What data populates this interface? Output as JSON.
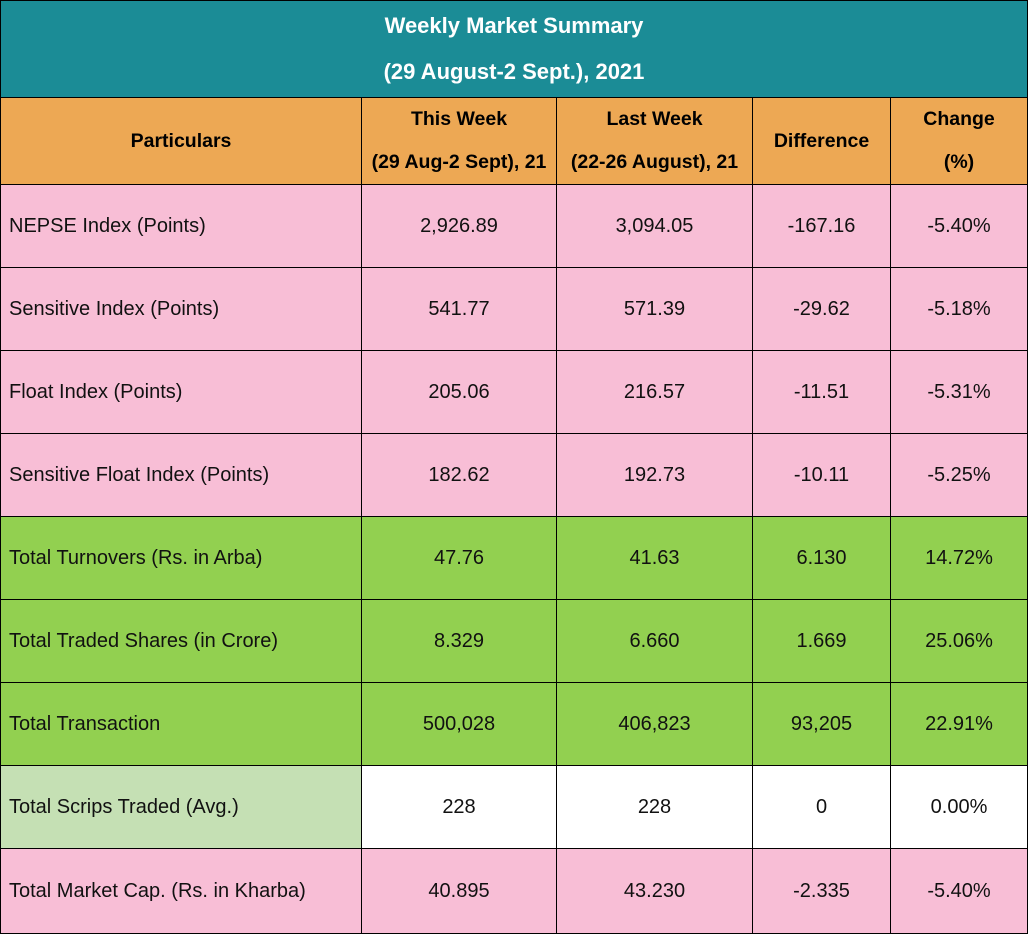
{
  "title": {
    "line1": "Weekly Market Summary",
    "line2": "(29 August-2 Sept.), 2021"
  },
  "header": {
    "particulars": "Particulars",
    "this_week": {
      "line1": "This Week",
      "line2": "(29 Aug-2 Sept), 21"
    },
    "last_week": {
      "line1": "Last Week",
      "line2": "(22-26 August), 21"
    },
    "difference": "Difference",
    "change": {
      "line1": "Change",
      "line2": "(%)"
    }
  },
  "colors": {
    "title_bg": "#1b8c96",
    "header_bg": "#eda854",
    "pink_row": "#f8bed6",
    "green_row": "#92d050",
    "light_green_label": "#c5e0b4"
  },
  "rows": [
    {
      "label": "NEPSE Index (Points)",
      "this_week": "2,926.89",
      "last_week": "3,094.05",
      "difference": "-167.16",
      "change": "-5.40%",
      "theme": "pink"
    },
    {
      "label": "Sensitive Index (Points)",
      "this_week": "541.77",
      "last_week": "571.39",
      "difference": "-29.62",
      "change": "-5.18%",
      "theme": "pink"
    },
    {
      "label": "Float Index (Points)",
      "this_week": "205.06",
      "last_week": "216.57",
      "difference": "-11.51",
      "change": "-5.31%",
      "theme": "pink"
    },
    {
      "label": "Sensitive Float Index (Points)",
      "this_week": "182.62",
      "last_week": "192.73",
      "difference": "-10.11",
      "change": "-5.25%",
      "theme": "pink"
    },
    {
      "label": "Total Turnovers (Rs. in Arba)",
      "this_week": "47.76",
      "last_week": "41.63",
      "difference": "6.130",
      "change": "14.72%",
      "theme": "green"
    },
    {
      "label": "Total Traded Shares (in Crore)",
      "this_week": "8.329",
      "last_week": "6.660",
      "difference": "1.669",
      "change": "25.06%",
      "theme": "green"
    },
    {
      "label": "Total Transaction",
      "this_week": "500,028",
      "last_week": "406,823",
      "difference": "93,205",
      "change": "22.91%",
      "theme": "green"
    },
    {
      "label": "Total Scrips Traded (Avg.)",
      "this_week": "228",
      "last_week": "228",
      "difference": "0",
      "change": "0.00%",
      "theme": "white"
    },
    {
      "label": "Total Market Cap. (Rs. in Kharba)",
      "this_week": "40.895",
      "last_week": "43.230",
      "difference": "-2.335",
      "change": "-5.40%",
      "theme": "pink"
    }
  ]
}
